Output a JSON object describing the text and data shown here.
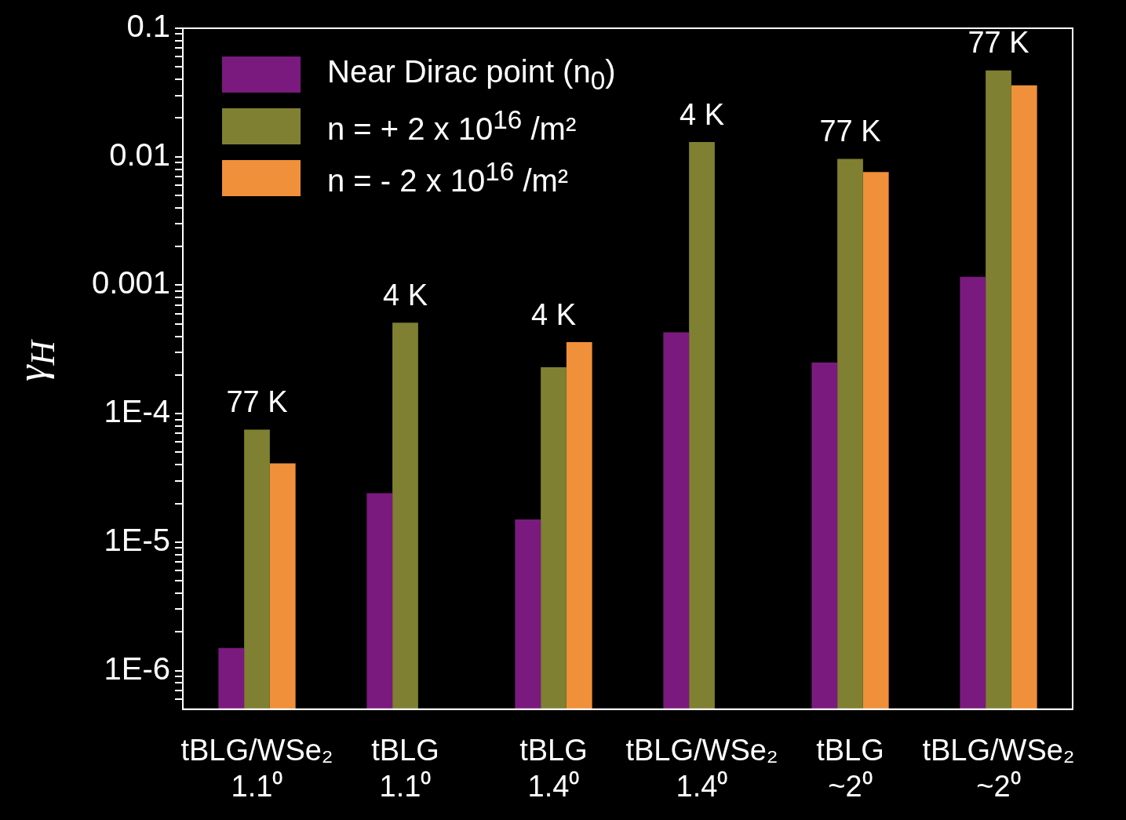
{
  "chart_data": {
    "type": "bar",
    "ylabel": "γ$_{H}$",
    "categories": [
      "tBLG/WSe₂ 1.1⁰",
      "tBLG 1.1⁰",
      "tBLG 1.4⁰",
      "tBLG/WSe₂ 1.4⁰",
      "tBLG ~2⁰",
      "tBLG/WSe₂ ~2⁰"
    ],
    "series": [
      {
        "name": "Near Dirac point (n$_{0}$)",
        "color": "#7a1a7e",
        "values": [
          1.5e-06,
          2.4e-05,
          1.5e-05,
          0.00043,
          0.00025,
          0.00116
        ]
      },
      {
        "name": "n = + 2 x 10$^{16}$ /m²",
        "color": "#808032",
        "values": [
          7.5e-05,
          0.00051,
          0.00023,
          0.013,
          0.0096,
          0.047
        ]
      },
      {
        "name": "n = - 2 x 10$^{16}$ /m²",
        "color": "#f0903a",
        "values": [
          4.1e-05,
          null,
          0.00036,
          null,
          0.0076,
          0.036
        ]
      }
    ],
    "log": "y",
    "ylim": [
      5e-07,
      0.1
    ],
    "yticks": [
      {
        "value": 6e-07,
        "label": null
      },
      {
        "value": 7e-07,
        "label": null
      },
      {
        "value": 8e-07,
        "label": null
      },
      {
        "value": 9e-07,
        "label": null
      },
      {
        "value": 1e-06,
        "label": "1E-6"
      },
      {
        "value": 2e-06,
        "label": null
      },
      {
        "value": 3e-06,
        "label": null
      },
      {
        "value": 4e-06,
        "label": null
      },
      {
        "value": 5e-06,
        "label": null
      },
      {
        "value": 6e-06,
        "label": null
      },
      {
        "value": 7e-06,
        "label": null
      },
      {
        "value": 8e-06,
        "label": null
      },
      {
        "value": 9e-06,
        "label": null
      },
      {
        "value": 1e-05,
        "label": "1E-5"
      },
      {
        "value": 2e-05,
        "label": null
      },
      {
        "value": 3e-05,
        "label": null
      },
      {
        "value": 4e-05,
        "label": null
      },
      {
        "value": 5e-05,
        "label": null
      },
      {
        "value": 6e-05,
        "label": null
      },
      {
        "value": 7e-05,
        "label": null
      },
      {
        "value": 8e-05,
        "label": null
      },
      {
        "value": 9e-05,
        "label": null
      },
      {
        "value": 0.0001,
        "label": "1E-4"
      },
      {
        "value": 0.0002,
        "label": null
      },
      {
        "value": 0.0003,
        "label": null
      },
      {
        "value": 0.0004,
        "label": null
      },
      {
        "value": 0.0005,
        "label": null
      },
      {
        "value": 0.0006,
        "label": null
      },
      {
        "value": 0.0007,
        "label": null
      },
      {
        "value": 0.0008,
        "label": null
      },
      {
        "value": 0.0009,
        "label": null
      },
      {
        "value": 0.001,
        "label": "0.001"
      },
      {
        "value": 0.002,
        "label": null
      },
      {
        "value": 0.003,
        "label": null
      },
      {
        "value": 0.004,
        "label": null
      },
      {
        "value": 0.005,
        "label": null
      },
      {
        "value": 0.006,
        "label": null
      },
      {
        "value": 0.007,
        "label": null
      },
      {
        "value": 0.008,
        "label": null
      },
      {
        "value": 0.009,
        "label": null
      },
      {
        "value": 0.01,
        "label": "0.01"
      },
      {
        "value": 0.02,
        "label": null
      },
      {
        "value": 0.03,
        "label": null
      },
      {
        "value": 0.04,
        "label": null
      },
      {
        "value": 0.05,
        "label": null
      },
      {
        "value": 0.06,
        "label": null
      },
      {
        "value": 0.07,
        "label": null
      },
      {
        "value": 0.08,
        "label": null
      },
      {
        "value": 0.09,
        "label": null
      },
      {
        "value": 0.1,
        "label": "0.1"
      }
    ],
    "grid": false,
    "legend": "top left",
    "annotations": [
      "77 K",
      "4 K",
      "4 K",
      "4 K",
      "77 K",
      "77 K"
    ]
  }
}
